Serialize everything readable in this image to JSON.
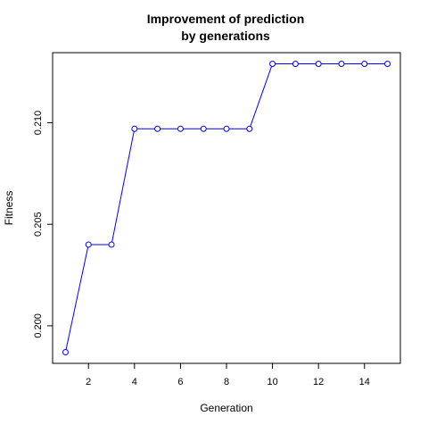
{
  "chart_data": {
    "type": "line",
    "title": "Improvement of prediction by generations",
    "title_lines": [
      "Improvement of prediction",
      "by generations"
    ],
    "xlabel": "Generation",
    "ylabel": "Fitness",
    "x": [
      1,
      2,
      3,
      4,
      5,
      6,
      7,
      8,
      9,
      10,
      11,
      12,
      13,
      14,
      15
    ],
    "series": [
      {
        "values": [
          0.1987,
          0.204,
          0.204,
          0.2097,
          0.2097,
          0.2097,
          0.2097,
          0.2097,
          0.2097,
          0.2129,
          0.2129,
          0.2129,
          0.2129,
          0.2129,
          0.2129
        ],
        "color": "#0000ff",
        "marker": "open-circle"
      }
    ],
    "xlim": [
      0.44,
      15.56
    ],
    "ylim": [
      0.19815,
      0.21345
    ],
    "xticks": [
      2,
      4,
      6,
      8,
      10,
      12,
      14
    ],
    "xtick_labels": [
      "2",
      "4",
      "6",
      "8",
      "10",
      "12",
      "14"
    ],
    "yticks": [
      0.2,
      0.205,
      0.21
    ],
    "ytick_labels": [
      "0.200",
      "0.205",
      "0.210"
    ],
    "grid": false,
    "legend": "none"
  }
}
